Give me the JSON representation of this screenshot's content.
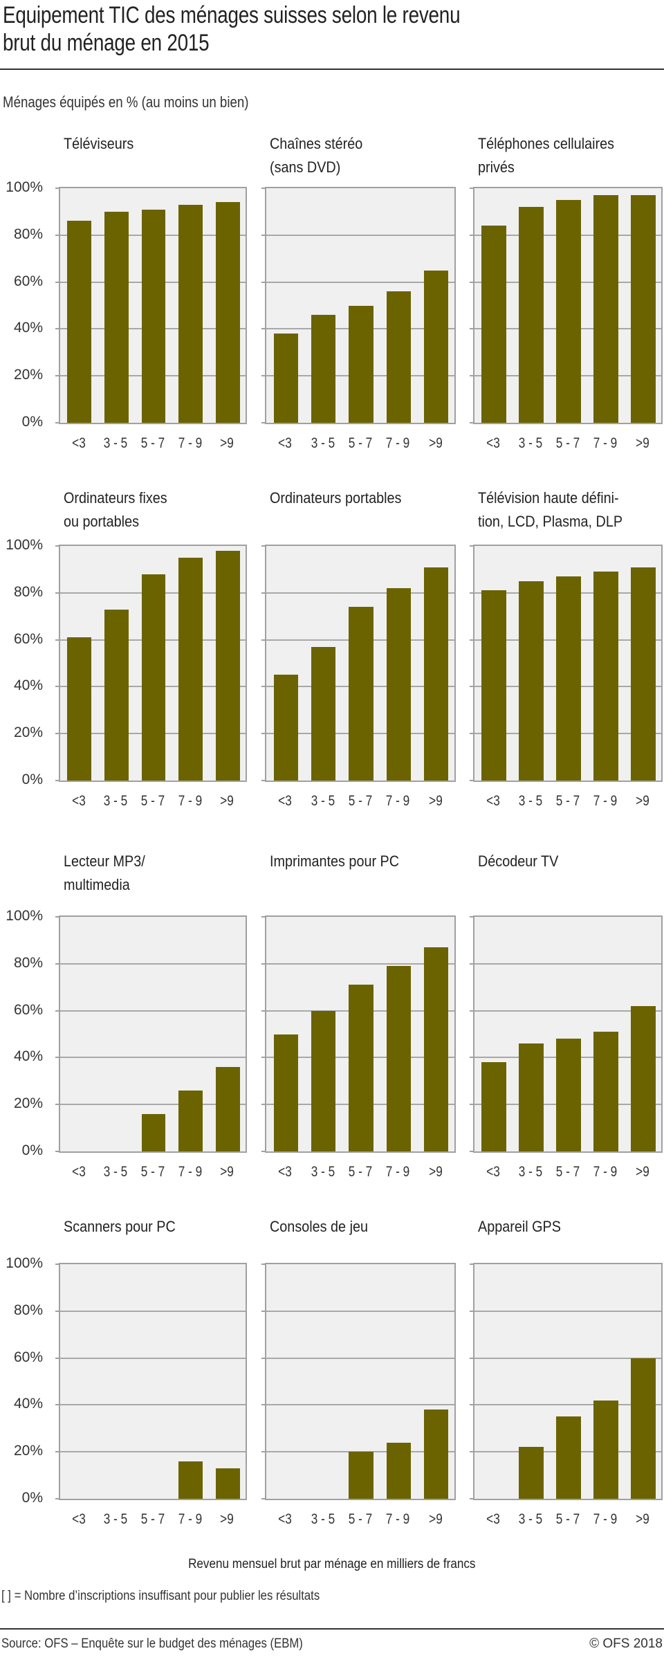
{
  "header": {
    "title_line1": "Equipement TIC des ménages suisses selon le revenu",
    "title_line2": "brut du ménage en 2015",
    "subtitle": "Ménages équipés en % (au moins un bien)"
  },
  "footer": {
    "xaxis_title": "Revenu mensuel brut par ménage en milliers de francs",
    "note": "[ ] = Nombre d’inscriptions insuffisant pour publier les résultats",
    "source": "Source: OFS – Enquête sur le budget des ménages (EBM)",
    "copyright": "© OFS 2018"
  },
  "colors": {
    "bar": "#6b6300",
    "plot_background": "#f0f0f0",
    "grid": "#a8a8a8"
  },
  "chart_data": {
    "type": "bar",
    "layout": "small-multiples 4 rows × 3 columns",
    "title": "Equipement TIC des ménages suisses selon le revenu brut du ménage en 2015",
    "ylabel": "Ménages équipés en % (au moins un bien)",
    "xlabel": "Revenu mensuel brut par ménage en milliers de francs",
    "ylim": [
      0,
      100
    ],
    "yticks": [
      "0%",
      "20%",
      "40%",
      "60%",
      "80%",
      "100%"
    ],
    "grid": true,
    "categories": [
      "<3",
      "3 - 5",
      "5 - 7",
      "7 - 9",
      ">9"
    ],
    "panels": [
      {
        "name": "Téléviseurs",
        "title_lines": [
          "Téléviseurs"
        ],
        "values": [
          86,
          90,
          91,
          93,
          94
        ]
      },
      {
        "name": "Chaînes stéréo (sans DVD)",
        "title_lines": [
          "Chaînes stéréo",
          "(sans DVD)"
        ],
        "values": [
          38,
          46,
          50,
          56,
          65
        ]
      },
      {
        "name": "Téléphones cellulaires privés",
        "title_lines": [
          "Téléphones cellulaires",
          "privés"
        ],
        "values": [
          84,
          92,
          95,
          97,
          97
        ]
      },
      {
        "name": "Ordinateurs fixes ou portables",
        "title_lines": [
          "Ordinateurs fixes",
          "ou portables"
        ],
        "values": [
          61,
          73,
          88,
          95,
          98
        ]
      },
      {
        "name": "Ordinateurs portables",
        "title_lines": [
          "Ordinateurs portables"
        ],
        "values": [
          45,
          57,
          74,
          82,
          91
        ]
      },
      {
        "name": "Télévision haute définition, LCD, Plasma, DLP",
        "title_lines": [
          "Télévision haute défini-",
          "tion, LCD, Plasma, DLP"
        ],
        "values": [
          81,
          85,
          87,
          89,
          91
        ]
      },
      {
        "name": "Lecteur MP3/multimedia",
        "title_lines": [
          "Lecteur MP3/",
          "multimedia"
        ],
        "values": [
          null,
          null,
          16,
          26,
          36
        ]
      },
      {
        "name": "Imprimantes pour PC",
        "title_lines": [
          "Imprimantes pour PC"
        ],
        "values": [
          50,
          60,
          71,
          79,
          87
        ]
      },
      {
        "name": "Décodeur TV",
        "title_lines": [
          "Décodeur TV"
        ],
        "values": [
          38,
          46,
          48,
          51,
          62
        ]
      },
      {
        "name": "Scanners pour PC",
        "title_lines": [
          "Scanners pour PC"
        ],
        "values": [
          null,
          null,
          null,
          16,
          13
        ]
      },
      {
        "name": "Consoles de jeu",
        "title_lines": [
          "Consoles de jeu"
        ],
        "values": [
          null,
          null,
          20,
          24,
          38
        ]
      },
      {
        "name": "Appareil GPS",
        "title_lines": [
          "Appareil GPS"
        ],
        "values": [
          null,
          22,
          35,
          42,
          60
        ]
      }
    ]
  }
}
